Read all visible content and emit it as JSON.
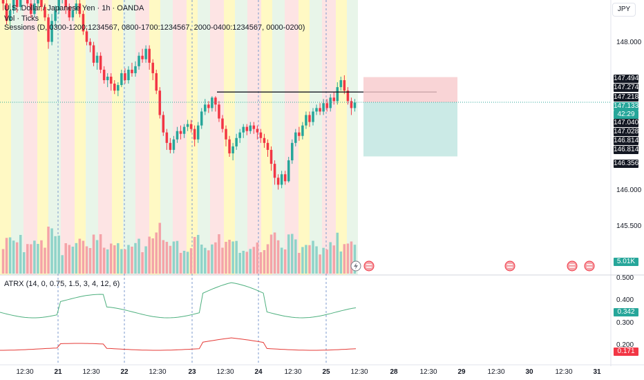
{
  "legend": {
    "symbol": "U.S. Dollar / Japanese Yen · 1h · OANDA",
    "volume": "Vol · Ticks",
    "sessions": "Sessions (D, 0300-1200:1234567, 0800-1700:1234567, 2000-0400:1234567, 0000-0200)",
    "atr": "ATRX (14, 0, 0.75, 1.5, 3, 4, 12, 6)"
  },
  "currency_button": "JPY",
  "price_axis": [
    "148.000",
    "146.000",
    "145.500"
  ],
  "price_tags": [
    {
      "text": "147.494",
      "bg": "#131722"
    },
    {
      "text": "147.274",
      "bg": "#131722"
    },
    {
      "text": "147.218",
      "bg": "#131722"
    },
    {
      "text": "147.133",
      "bg": "#26a69a"
    },
    {
      "text": "42:29",
      "bg": "#26a69a"
    },
    {
      "text": "147.040",
      "bg": "#131722"
    },
    {
      "text": "147.028",
      "bg": "#131722"
    },
    {
      "text": "146.814",
      "bg": "#131722"
    },
    {
      "text": "146.814",
      "bg": "#131722"
    },
    {
      "text": "146.356",
      "bg": "#131722"
    }
  ],
  "volume_tag": "5.01K",
  "atr_axis": [
    "0.500",
    "0.400",
    "0.300",
    "0.200"
  ],
  "atr_tags": [
    {
      "text": "0.342",
      "bg": "#26a69a"
    },
    {
      "text": "0.171",
      "bg": "#f23645"
    }
  ],
  "time_axis": [
    {
      "text": "12:30",
      "day": false
    },
    {
      "text": "21",
      "day": true
    },
    {
      "text": "12:30",
      "day": false
    },
    {
      "text": "22",
      "day": true
    },
    {
      "text": "12:30",
      "day": false
    },
    {
      "text": "23",
      "day": true
    },
    {
      "text": "12:30",
      "day": false
    },
    {
      "text": "24",
      "day": true
    },
    {
      "text": "12:30",
      "day": false
    },
    {
      "text": "25",
      "day": true
    },
    {
      "text": "12:30",
      "day": false
    },
    {
      "text": "28",
      "day": true
    },
    {
      "text": "12:30",
      "day": false
    },
    {
      "text": "29",
      "day": true
    },
    {
      "text": "12:30",
      "day": false
    },
    {
      "text": "30",
      "day": true
    },
    {
      "text": "12:30",
      "day": false
    },
    {
      "text": "31",
      "day": true
    }
  ],
  "colors": {
    "up": "#26a69a",
    "down": "#f23645",
    "session_yellow": "#fff9c4",
    "session_green": "#e8f5e9",
    "session_red": "#fde4e4",
    "atr_green": "#4caf7d",
    "atr_red": "#e53935"
  },
  "chart_data": {
    "type": "candlestick",
    "price_range": [
      145.25,
      148.6
    ],
    "candles": [
      [
        148.62,
        148.55,
        148.7,
        148.45
      ],
      [
        148.55,
        148.3,
        148.62,
        148.25
      ],
      [
        148.3,
        148.45,
        148.55,
        148.2
      ],
      [
        148.45,
        148.6,
        148.68,
        148.4
      ],
      [
        148.6,
        148.5,
        148.65,
        148.42
      ],
      [
        148.5,
        148.68,
        148.75,
        148.45
      ],
      [
        148.68,
        148.75,
        148.8,
        148.6
      ],
      [
        148.75,
        148.55,
        148.78,
        148.5
      ],
      [
        148.55,
        148.4,
        148.6,
        148.35
      ],
      [
        148.4,
        148.55,
        148.62,
        148.35
      ],
      [
        148.55,
        148.62,
        148.7,
        148.5
      ],
      [
        148.62,
        148.5,
        148.66,
        148.44
      ],
      [
        148.5,
        148.35,
        148.55,
        148.3
      ],
      [
        148.35,
        148.0,
        148.4,
        147.9
      ],
      [
        148.0,
        148.3,
        148.4,
        147.95
      ],
      [
        148.3,
        148.45,
        148.52,
        148.2
      ],
      [
        148.45,
        148.6,
        148.7,
        148.4
      ],
      [
        148.6,
        148.65,
        148.72,
        148.55
      ],
      [
        148.65,
        148.5,
        148.7,
        148.4
      ],
      [
        148.5,
        148.35,
        148.55,
        148.3
      ],
      [
        148.35,
        148.45,
        148.5,
        148.3
      ],
      [
        148.45,
        148.55,
        148.62,
        148.4
      ],
      [
        148.55,
        148.4,
        148.6,
        148.35
      ],
      [
        148.4,
        148.15,
        148.45,
        148.1
      ],
      [
        148.15,
        148.0,
        148.2,
        147.95
      ],
      [
        148.0,
        147.95,
        148.05,
        147.85
      ],
      [
        147.95,
        147.7,
        148.0,
        147.65
      ],
      [
        147.7,
        147.8,
        147.85,
        147.6
      ],
      [
        147.8,
        147.6,
        147.85,
        147.55
      ],
      [
        147.6,
        147.45,
        147.65,
        147.4
      ],
      [
        147.45,
        147.5,
        147.55,
        147.35
      ],
      [
        147.5,
        147.4,
        147.55,
        147.3
      ],
      [
        147.4,
        147.3,
        147.45,
        147.25
      ],
      [
        147.3,
        147.38,
        147.42,
        147.22
      ],
      [
        147.38,
        147.55,
        147.6,
        147.35
      ],
      [
        147.55,
        147.45,
        147.62,
        147.4
      ],
      [
        147.45,
        147.6,
        147.65,
        147.4
      ],
      [
        147.6,
        147.55,
        147.7,
        147.5
      ],
      [
        147.55,
        147.65,
        147.72,
        147.5
      ],
      [
        147.65,
        147.8,
        147.85,
        147.6
      ],
      [
        147.8,
        147.75,
        147.9,
        147.7
      ],
      [
        147.75,
        147.9,
        147.95,
        147.7
      ],
      [
        147.9,
        147.7,
        147.95,
        147.6
      ],
      [
        147.7,
        147.55,
        147.75,
        147.45
      ],
      [
        147.55,
        147.3,
        147.6,
        147.25
      ],
      [
        147.3,
        146.95,
        147.35,
        146.9
      ],
      [
        146.95,
        146.7,
        147.0,
        146.65
      ],
      [
        146.7,
        146.55,
        146.75,
        146.45
      ],
      [
        146.55,
        146.45,
        146.62,
        146.4
      ],
      [
        146.45,
        146.6,
        146.65,
        146.4
      ],
      [
        146.6,
        146.72,
        146.78,
        146.55
      ],
      [
        146.72,
        146.68,
        146.8,
        146.6
      ],
      [
        146.68,
        146.78,
        146.82,
        146.62
      ],
      [
        146.78,
        146.82,
        146.88,
        146.72
      ],
      [
        146.82,
        146.75,
        146.88,
        146.7
      ],
      [
        146.75,
        146.6,
        146.8,
        146.5
      ],
      [
        146.6,
        146.8,
        146.85,
        146.55
      ],
      [
        146.8,
        147.0,
        147.05,
        146.75
      ],
      [
        147.0,
        147.1,
        147.18,
        146.95
      ],
      [
        147.1,
        147.05,
        147.15,
        146.98
      ],
      [
        147.05,
        147.2,
        147.22,
        147.0
      ],
      [
        147.2,
        147.1,
        147.22,
        147.0
      ],
      [
        147.1,
        146.9,
        147.15,
        146.85
      ],
      [
        146.9,
        146.75,
        146.95,
        146.7
      ],
      [
        146.75,
        146.6,
        146.8,
        146.5
      ],
      [
        146.6,
        146.4,
        146.65,
        146.35
      ],
      [
        146.4,
        146.5,
        146.55,
        146.3
      ],
      [
        146.5,
        146.62,
        146.68,
        146.45
      ],
      [
        146.62,
        146.7,
        146.75,
        146.55
      ],
      [
        146.7,
        146.78,
        146.82,
        146.62
      ],
      [
        146.78,
        146.72,
        146.82,
        146.66
      ],
      [
        146.72,
        146.8,
        146.85,
        146.68
      ],
      [
        146.8,
        146.75,
        146.85,
        146.68
      ],
      [
        146.75,
        146.7,
        146.8,
        146.6
      ],
      [
        146.7,
        146.62,
        146.75,
        146.55
      ],
      [
        146.62,
        146.55,
        146.68,
        146.48
      ],
      [
        146.55,
        146.45,
        146.6,
        146.35
      ],
      [
        146.45,
        146.25,
        146.5,
        146.15
      ],
      [
        146.25,
        146.05,
        146.3,
        145.95
      ],
      [
        146.05,
        145.95,
        146.1,
        145.88
      ],
      [
        145.95,
        146.1,
        146.15,
        145.9
      ],
      [
        146.1,
        146.0,
        146.15,
        145.95
      ],
      [
        146.0,
        146.3,
        146.35,
        145.98
      ],
      [
        146.3,
        146.55,
        146.6,
        146.25
      ],
      [
        146.55,
        146.7,
        146.75,
        146.5
      ],
      [
        146.7,
        146.65,
        146.78,
        146.58
      ],
      [
        146.65,
        146.8,
        146.85,
        146.6
      ],
      [
        146.8,
        146.95,
        147.0,
        146.75
      ],
      [
        146.95,
        146.85,
        147.0,
        146.78
      ],
      [
        146.85,
        147.0,
        147.05,
        146.8
      ],
      [
        147.0,
        147.05,
        147.1,
        146.95
      ],
      [
        147.05,
        147.0,
        147.12,
        146.95
      ],
      [
        147.0,
        147.12,
        147.18,
        146.95
      ],
      [
        147.12,
        147.05,
        147.18,
        147.0
      ],
      [
        147.05,
        147.2,
        147.25,
        147.0
      ],
      [
        147.2,
        147.15,
        147.28,
        147.1
      ],
      [
        147.15,
        147.35,
        147.42,
        147.1
      ],
      [
        147.35,
        147.45,
        147.5,
        147.3
      ],
      [
        147.45,
        147.3,
        147.52,
        147.25
      ],
      [
        147.3,
        147.15,
        147.35,
        147.1
      ],
      [
        147.15,
        147.05,
        147.2,
        146.95
      ],
      [
        147.05,
        147.13,
        147.18,
        147.0
      ]
    ]
  }
}
